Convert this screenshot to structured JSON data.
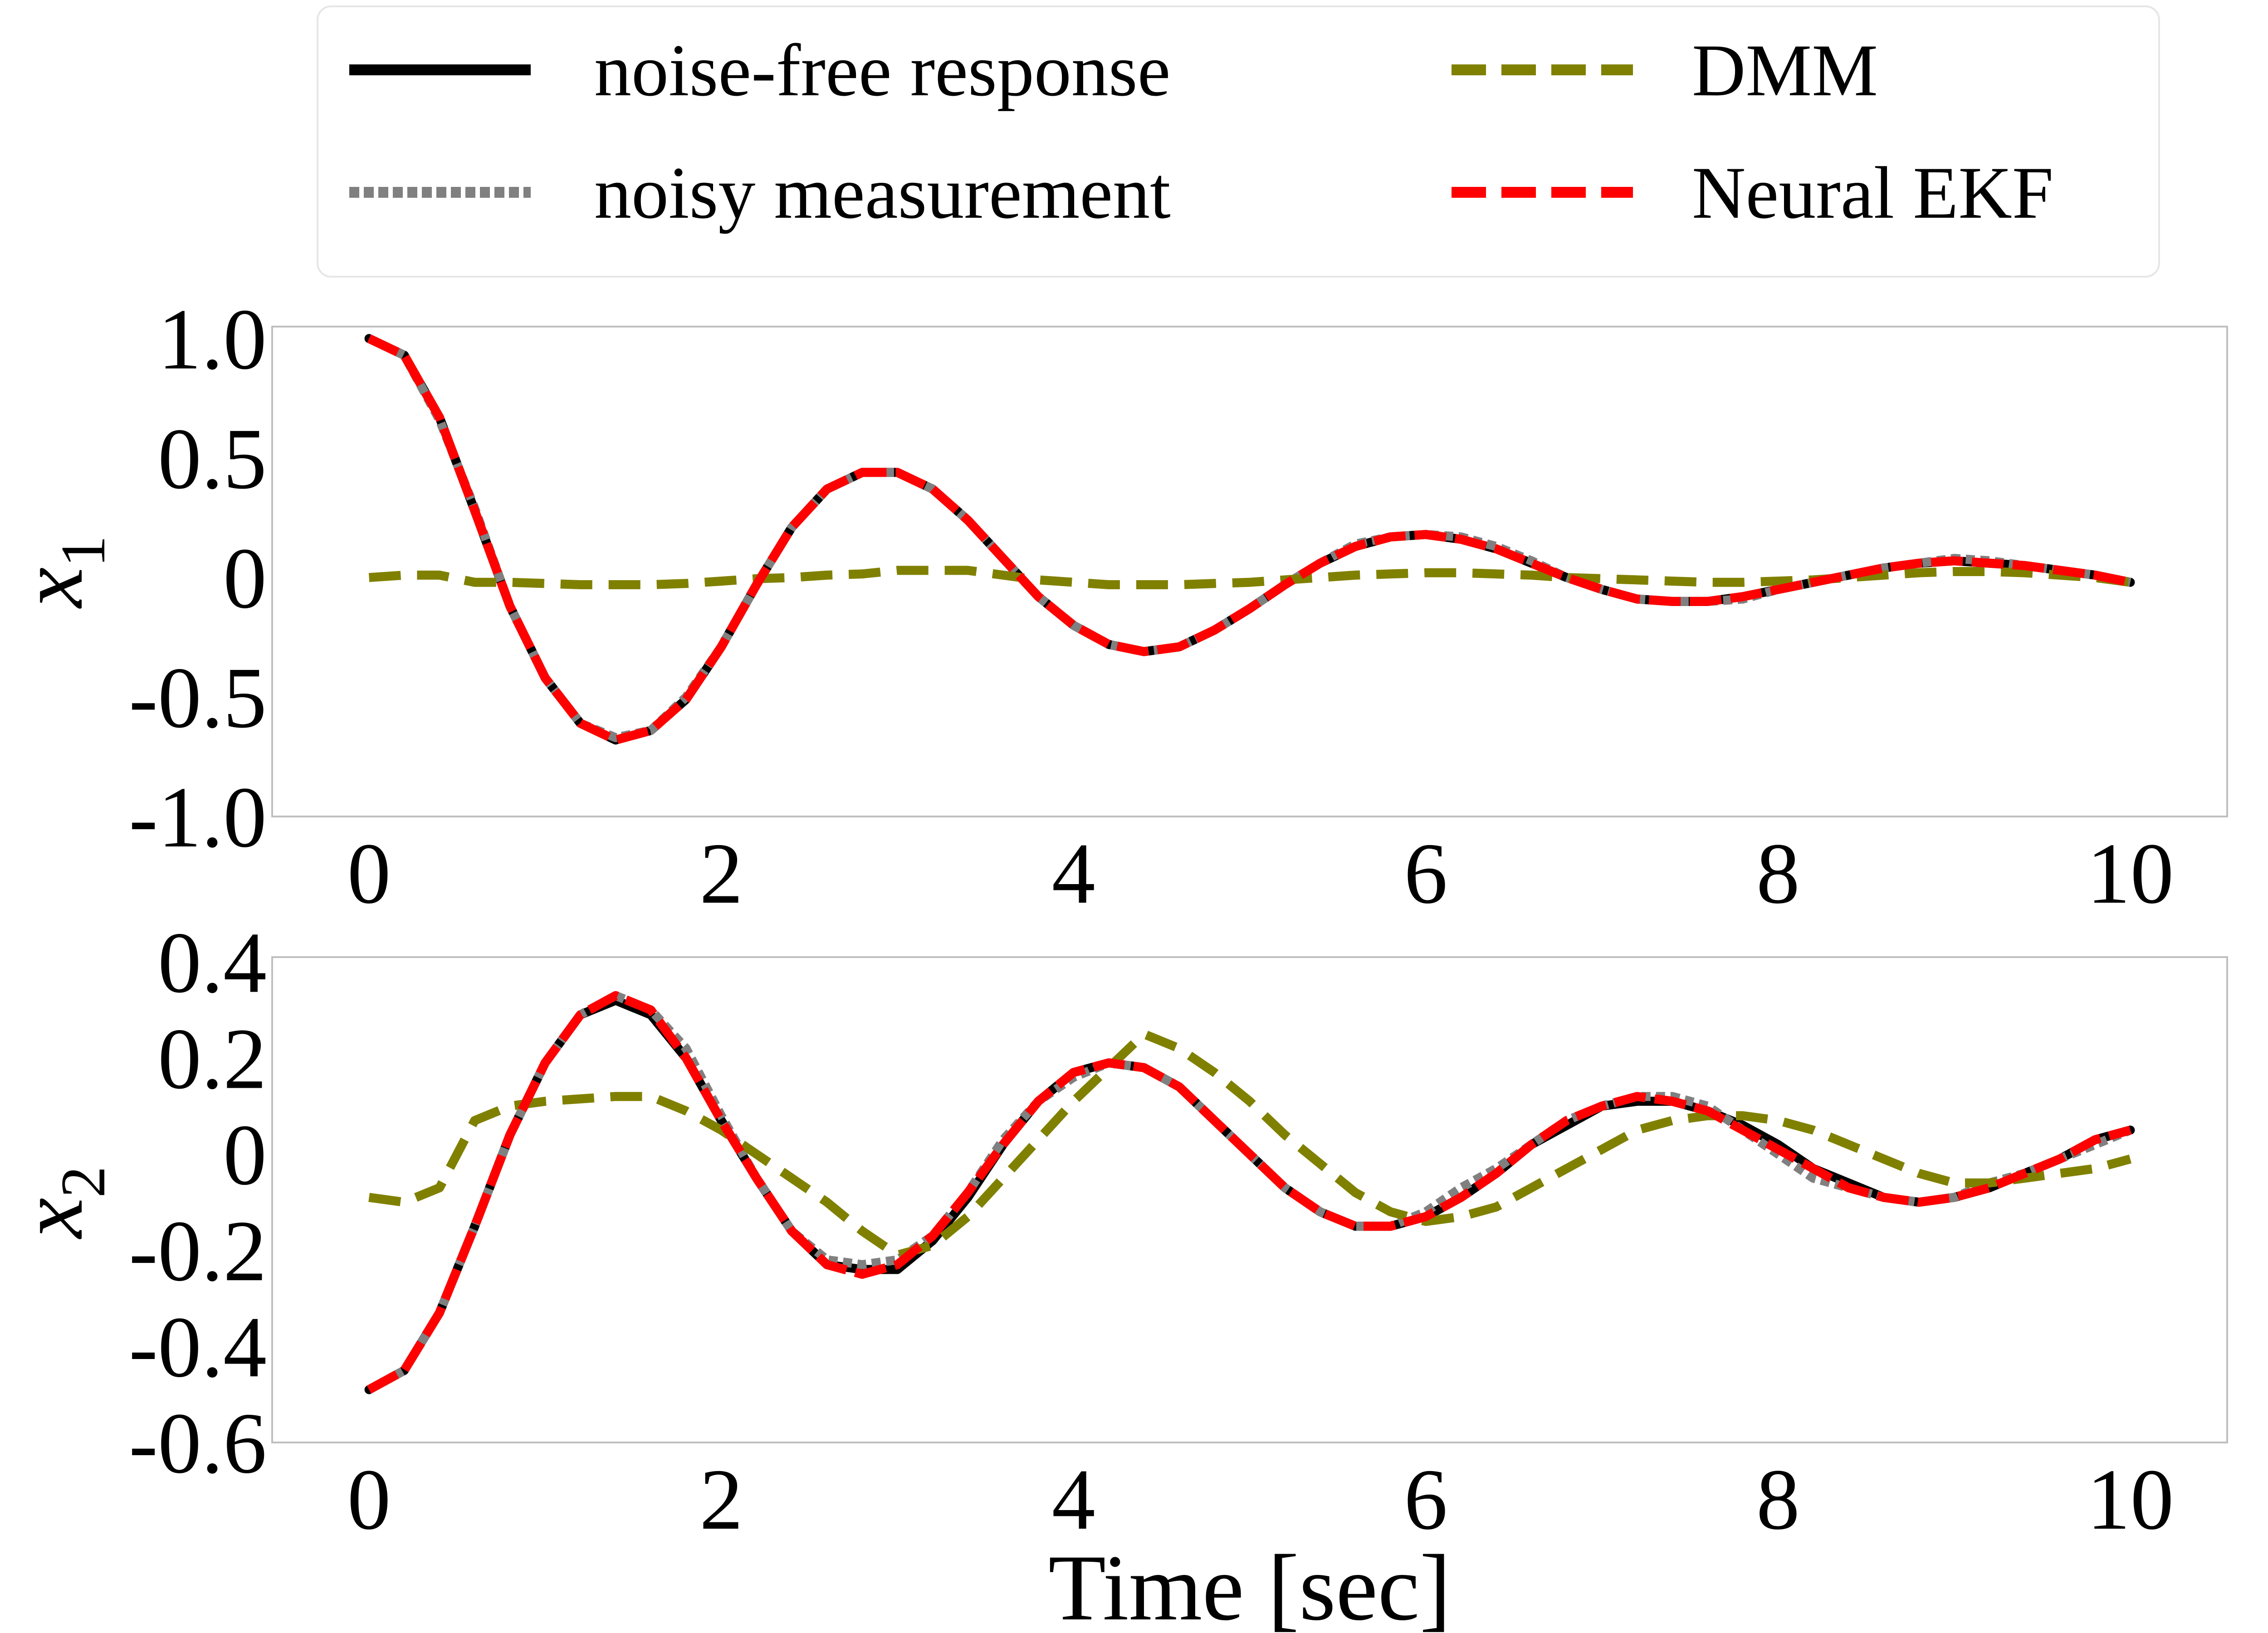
{
  "chart_data": [
    {
      "type": "line",
      "ylabel": "x",
      "ylabel_subscript": "1",
      "xlabel": "",
      "xlim": [
        -0.55,
        10.55
      ],
      "ylim": [
        -1.0,
        1.05
      ],
      "xticks": [
        0,
        2,
        4,
        6,
        8,
        10
      ],
      "xtick_labels": [
        "0",
        "2",
        "4",
        "6",
        "8",
        "10"
      ],
      "yticks": [
        1.0,
        0.5,
        0,
        -0.5,
        -1.0
      ],
      "ytick_labels": [
        "1.0",
        "0.5",
        "0",
        "-0.5",
        "-1.0"
      ],
      "grid": false,
      "x": [
        0,
        0.2,
        0.4,
        0.6,
        0.8,
        1.0,
        1.2,
        1.4,
        1.6,
        1.8,
        2.0,
        2.2,
        2.4,
        2.6,
        2.8,
        3.0,
        3.2,
        3.4,
        3.6,
        3.8,
        4.0,
        4.2,
        4.4,
        4.6,
        4.8,
        5.0,
        5.2,
        5.4,
        5.6,
        5.8,
        6.0,
        6.2,
        6.4,
        6.6,
        6.8,
        7.0,
        7.2,
        7.4,
        7.6,
        7.8,
        8.0,
        8.2,
        8.4,
        8.6,
        8.8,
        9.0,
        9.2,
        9.4,
        9.6,
        9.8,
        10.0
      ],
      "series": [
        {
          "name": "noise-free response",
          "values": [
            1.0,
            0.93,
            0.67,
            0.28,
            -0.12,
            -0.42,
            -0.61,
            -0.68,
            -0.64,
            -0.51,
            -0.29,
            -0.03,
            0.21,
            0.37,
            0.44,
            0.44,
            0.37,
            0.24,
            0.08,
            -0.08,
            -0.2,
            -0.28,
            -0.31,
            -0.29,
            -0.22,
            -0.13,
            -0.03,
            0.06,
            0.13,
            0.17,
            0.18,
            0.16,
            0.12,
            0.06,
            0.0,
            -0.05,
            -0.09,
            -0.1,
            -0.1,
            -0.08,
            -0.05,
            -0.02,
            0.01,
            0.04,
            0.06,
            0.07,
            0.06,
            0.05,
            0.03,
            0.01,
            -0.02
          ]
        },
        {
          "name": "noisy measurement",
          "values": [
            1.0,
            0.93,
            0.66,
            0.29,
            -0.12,
            -0.42,
            -0.61,
            -0.67,
            -0.64,
            -0.5,
            -0.29,
            -0.03,
            0.21,
            0.37,
            0.44,
            0.44,
            0.37,
            0.24,
            0.08,
            -0.08,
            -0.2,
            -0.28,
            -0.31,
            -0.29,
            -0.22,
            -0.13,
            -0.03,
            0.06,
            0.14,
            0.17,
            0.18,
            0.17,
            0.13,
            0.07,
            0.0,
            -0.05,
            -0.09,
            -0.1,
            -0.1,
            -0.09,
            -0.05,
            -0.02,
            0.01,
            0.04,
            0.06,
            0.08,
            0.07,
            0.05,
            0.03,
            0.01,
            -0.02
          ]
        },
        {
          "name": "DMM",
          "values": [
            0.0,
            0.01,
            0.01,
            -0.02,
            -0.02,
            -0.025,
            -0.03,
            -0.03,
            -0.03,
            -0.025,
            -0.015,
            -0.005,
            0.0,
            0.01,
            0.015,
            0.03,
            0.03,
            0.03,
            0.01,
            -0.01,
            -0.02,
            -0.03,
            -0.03,
            -0.03,
            -0.025,
            -0.02,
            -0.01,
            0.0,
            0.01,
            0.015,
            0.02,
            0.02,
            0.015,
            0.01,
            0.0,
            -0.005,
            -0.01,
            -0.015,
            -0.02,
            -0.02,
            -0.015,
            -0.01,
            0.0,
            0.01,
            0.02,
            0.025,
            0.025,
            0.02,
            0.01,
            0.0,
            -0.02
          ]
        },
        {
          "name": "Neural EKF",
          "values": [
            1.0,
            0.93,
            0.67,
            0.28,
            -0.12,
            -0.42,
            -0.61,
            -0.68,
            -0.64,
            -0.51,
            -0.29,
            -0.03,
            0.21,
            0.37,
            0.44,
            0.44,
            0.37,
            0.24,
            0.08,
            -0.08,
            -0.2,
            -0.28,
            -0.31,
            -0.29,
            -0.22,
            -0.13,
            -0.03,
            0.06,
            0.13,
            0.17,
            0.18,
            0.16,
            0.12,
            0.06,
            0.0,
            -0.05,
            -0.09,
            -0.1,
            -0.1,
            -0.08,
            -0.05,
            -0.02,
            0.01,
            0.04,
            0.06,
            0.07,
            0.06,
            0.05,
            0.03,
            0.01,
            -0.02
          ]
        }
      ]
    },
    {
      "type": "line",
      "ylabel": "x",
      "ylabel_subscript": "2",
      "xlabel": "Time [sec]",
      "xlim": [
        -0.55,
        10.55
      ],
      "ylim": [
        -0.6,
        0.41
      ],
      "xticks": [
        0,
        2,
        4,
        6,
        8,
        10
      ],
      "xtick_labels": [
        "0",
        "2",
        "4",
        "6",
        "8",
        "10"
      ],
      "yticks": [
        0.4,
        0.2,
        0,
        -0.2,
        -0.4,
        -0.6
      ],
      "ytick_labels": [
        "0.4",
        "0.2",
        "0",
        "-0.2",
        "-0.4",
        "-0.6"
      ],
      "grid": false,
      "x": [
        0,
        0.2,
        0.4,
        0.6,
        0.8,
        1.0,
        1.2,
        1.4,
        1.6,
        1.8,
        2.0,
        2.2,
        2.4,
        2.6,
        2.8,
        3.0,
        3.2,
        3.4,
        3.6,
        3.8,
        4.0,
        4.2,
        4.4,
        4.6,
        4.8,
        5.0,
        5.2,
        5.4,
        5.6,
        5.8,
        6.0,
        6.2,
        6.4,
        6.6,
        6.8,
        7.0,
        7.2,
        7.4,
        7.6,
        7.8,
        8.0,
        8.2,
        8.4,
        8.6,
        8.8,
        9.0,
        9.2,
        9.4,
        9.6,
        9.8,
        10.0
      ],
      "series": [
        {
          "name": "noise-free response",
          "values": [
            -0.49,
            -0.45,
            -0.33,
            -0.15,
            0.04,
            0.19,
            0.29,
            0.32,
            0.29,
            0.2,
            0.07,
            -0.05,
            -0.16,
            -0.23,
            -0.24,
            -0.24,
            -0.18,
            -0.09,
            0.02,
            0.11,
            0.17,
            0.19,
            0.18,
            0.14,
            0.07,
            0.0,
            -0.07,
            -0.12,
            -0.15,
            -0.15,
            -0.13,
            -0.09,
            -0.04,
            0.02,
            0.06,
            0.1,
            0.11,
            0.11,
            0.09,
            0.06,
            0.02,
            -0.03,
            -0.06,
            -0.09,
            -0.1,
            -0.09,
            -0.07,
            -0.04,
            -0.01,
            0.03,
            0.05
          ]
        },
        {
          "name": "noisy measurement",
          "values": [
            -0.49,
            -0.45,
            -0.33,
            -0.15,
            0.04,
            0.19,
            0.29,
            0.33,
            0.3,
            0.22,
            0.08,
            -0.05,
            -0.16,
            -0.22,
            -0.23,
            -0.22,
            -0.17,
            -0.08,
            0.03,
            0.11,
            0.16,
            0.19,
            0.18,
            0.14,
            0.07,
            0.0,
            -0.07,
            -0.12,
            -0.15,
            -0.15,
            -0.12,
            -0.07,
            -0.03,
            0.02,
            0.07,
            0.1,
            0.12,
            0.12,
            0.1,
            0.05,
            0.0,
            -0.05,
            -0.07,
            -0.09,
            -0.1,
            -0.09,
            -0.06,
            -0.04,
            -0.01,
            0.02,
            0.05
          ]
        },
        {
          "name": "DMM",
          "values": [
            -0.09,
            -0.1,
            -0.07,
            0.07,
            0.1,
            0.11,
            0.115,
            0.12,
            0.12,
            0.09,
            0.05,
            0.0,
            -0.05,
            -0.1,
            -0.16,
            -0.21,
            -0.19,
            -0.13,
            -0.05,
            0.03,
            0.11,
            0.18,
            0.25,
            0.22,
            0.17,
            0.11,
            0.04,
            -0.02,
            -0.08,
            -0.12,
            -0.14,
            -0.13,
            -0.11,
            -0.07,
            -0.03,
            0.01,
            0.05,
            0.07,
            0.08,
            0.08,
            0.07,
            0.05,
            0.02,
            -0.01,
            -0.04,
            -0.06,
            -0.06,
            -0.05,
            -0.04,
            -0.03,
            -0.01
          ]
        },
        {
          "name": "Neural EKF",
          "values": [
            -0.49,
            -0.45,
            -0.33,
            -0.15,
            0.04,
            0.19,
            0.29,
            0.33,
            0.3,
            0.2,
            0.07,
            -0.05,
            -0.16,
            -0.23,
            -0.25,
            -0.23,
            -0.17,
            -0.08,
            0.02,
            0.11,
            0.17,
            0.19,
            0.18,
            0.14,
            0.07,
            0.0,
            -0.07,
            -0.12,
            -0.15,
            -0.15,
            -0.13,
            -0.09,
            -0.04,
            0.02,
            0.07,
            0.1,
            0.12,
            0.11,
            0.09,
            0.05,
            0.01,
            -0.03,
            -0.07,
            -0.09,
            -0.1,
            -0.09,
            -0.07,
            -0.04,
            -0.01,
            0.03,
            0.05
          ]
        }
      ]
    }
  ],
  "legend": {
    "placement": "top-center",
    "entries": [
      {
        "label": "noise-free response",
        "color": "#000000",
        "style": "solid"
      },
      {
        "label": "noisy measurement",
        "color": "#808080",
        "style": "dotted"
      },
      {
        "label": "DMM",
        "color": "#808000",
        "style": "dashed"
      },
      {
        "label": "Neural EKF",
        "color": "#ff0000",
        "style": "dashed"
      }
    ]
  },
  "colors": {
    "noise_free": "#000000",
    "noisy": "#808080",
    "dmm": "#808000",
    "neural_ekf": "#ff0000",
    "frame": "#bfbfbf"
  }
}
